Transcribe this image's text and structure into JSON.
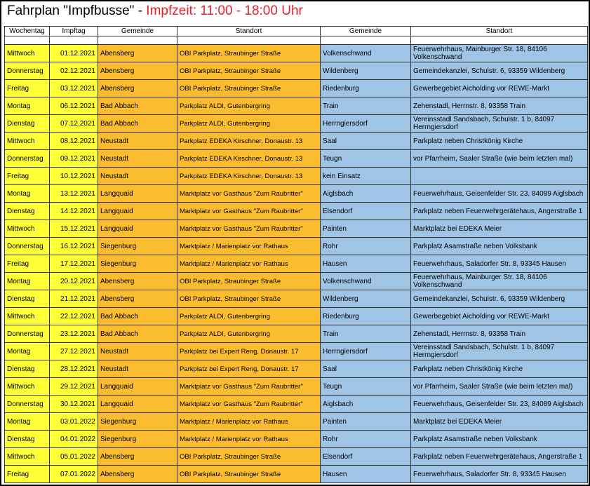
{
  "title": {
    "main": "Fahrplan \"Impfbusse\" - ",
    "highlight": "Impfzeit: 11:00 - 18:00 Uhr"
  },
  "colors": {
    "weekday": "#ffff38",
    "bus1": "#fcbc2f",
    "bus2": "#9fc4e6",
    "highlight": "#e8202a"
  },
  "headers": [
    "Wochentag",
    "Impftag",
    "Gemeinde",
    "Standort",
    "Gemeinde",
    "Standort"
  ],
  "rows": [
    [
      "Mittwoch",
      "01.12.2021",
      "Abensberg",
      "OBI Parkplatz, Straubinger Straße",
      "Volkenschwand",
      "Feuerwehrhaus, Mainburger Str. 18, 84106 Volkenschwand"
    ],
    [
      "Donnerstag",
      "02.12.2021",
      "Abensberg",
      "OBI Parkplatz, Straubinger Straße",
      "Wildenberg",
      "Gemeindekanzlei, Schulstr. 6, 93359 Wildenberg"
    ],
    [
      "Freitag",
      "03.12.2021",
      "Abensberg",
      "OBI Parkplatz, Straubinger Straße",
      "Riedenburg",
      "Gewerbegebiet Aicholding vor REWE-Markt"
    ],
    [
      "Montag",
      "06.12.2021",
      "Bad Abbach",
      "Parkplatz ALDI, Gutenbergring",
      "Train",
      "Zehenstadl, Herrnstr. 8, 93358 Train"
    ],
    [
      "Dienstag",
      "07.12.2021",
      "Bad Abbach",
      "Parkplatz ALDI, Gutenbergring",
      "Herrngiersdorf",
      "Vereinsstadl Sandsbach, Schulstr. 1 b, 84097 Herrngiersdorf"
    ],
    [
      "Mittwoch",
      "08.12.2021",
      "Neustadt",
      "Parkplatz EDEKA Kirschner, Donaustr. 13",
      "Saal",
      "Parkplatz neben Christkönig Kirche"
    ],
    [
      "Donnerstag",
      "09.12.2021",
      "Neustadt",
      "Parkplatz EDEKA Kirschner, Donaustr. 13",
      "Teugn",
      "vor Pfarrheim, Saaler Straße (wie beim letzten mal)"
    ],
    [
      "Freitag",
      "10.12.2021",
      "Neustadt",
      "Parkplatz EDEKA Kirschner, Donaustr. 13",
      "kein Einsatz",
      ""
    ],
    [
      "Montag",
      "13.12.2021",
      "Langquaid",
      "Marktplatz vor Gasthaus \"Zum Raubritter\"",
      "Aiglsbach",
      "Feuerwehrhaus, Geisenfelder Str. 23, 84089 Aiglsbach"
    ],
    [
      "Dienstag",
      "14.12.2021",
      "Langquaid",
      "Marktplatz vor Gasthaus \"Zum Raubritter\"",
      "Elsendorf",
      "Parkplatz neben Feuerwehrgerätehaus, Angerstraße 1"
    ],
    [
      "Mittwoch",
      "15.12.2021",
      "Langquaid",
      "Marktplatz vor Gasthaus \"Zum Raubritter\"",
      "Painten",
      "Marktplatz bei EDEKA Meier"
    ],
    [
      "Donnerstag",
      "16.12.2021",
      "Siegenburg",
      "Marktplatz / Marienplatz vor Rathaus",
      "Rohr",
      "Parkplatz Asamstraße neben Volksbank"
    ],
    [
      "Freitag",
      "17.12.2021",
      "Siegenburg",
      "Marktplatz / Marienplatz vor Rathaus",
      "Hausen",
      "Feuerwehrhaus, Saladorfer Str. 8, 93345 Hausen"
    ],
    [
      "Montag",
      "20.12.2021",
      "Abensberg",
      "OBI Parkplatz, Straubinger Straße",
      "Volkenschwand",
      "Feuerwehrhaus, Mainburger Str. 18, 84106 Volkenschwand"
    ],
    [
      "Dienstag",
      "21.12.2021",
      "Abensberg",
      "OBI Parkplatz, Straubinger Straße",
      "Wildenberg",
      "Gemeindekanzlei, Schulstr. 6, 93359 Wildenberg"
    ],
    [
      "Mittwoch",
      "22.12.2021",
      "Bad Abbach",
      "Parkplatz ALDI, Gutenbergring",
      "Riedenburg",
      "Gewerbegebiet Aicholding vor REWE-Markt"
    ],
    [
      "Donnerstag",
      "23.12.2021",
      "Bad Abbach",
      "Parkplatz ALDI, Gutenbergring",
      "Train",
      "Zehenstadl, Herrnstr. 8, 93358 Train"
    ],
    [
      "Montag",
      "27.12.2021",
      "Neustadt",
      "Parkplatz bei Expert Reng, Donaustr. 17",
      "Herrngiersdorf",
      "Vereinsstadl Sandsbach, Schulstr. 1 b, 84097 Herrngiersdorf"
    ],
    [
      "Dienstag",
      "28.12.2021",
      "Neustadt",
      "Parkplatz bei Expert Reng, Donaustr. 17",
      "Saal",
      "Parkplatz neben Christkönig Kirche"
    ],
    [
      "Mittwoch",
      "29.12.2021",
      "Langquaid",
      "Marktplatz vor Gasthaus \"Zum Raubritter\"",
      "Teugn",
      "vor Pfarrheim, Saaler Straße (wie beim letzten mal)"
    ],
    [
      "Donnerstag",
      "30.12.2021",
      "Langquaid",
      "Marktplatz vor Gasthaus \"Zum Raubritter\"",
      "Aiglsbach",
      "Feuerwehrhaus, Geisenfelder Str. 23, 84089 Aiglsbach"
    ],
    [
      "Montag",
      "03.01.2022",
      "Siegenburg",
      "Marktplatz / Marienplatz vor Rathaus",
      "Painten",
      "Marktplatz bei EDEKA Meier"
    ],
    [
      "Dienstag",
      "04.01.2022",
      "Siegenburg",
      "Marktplatz / Marienplatz vor Rathaus",
      "Rohr",
      "Parkplatz Asamstraße neben Volksbank"
    ],
    [
      "Mittwoch",
      "05.01.2022",
      "Abensberg",
      "OBI Parkplatz, Straubinger Straße",
      "Elsendorf",
      "Parkplatz neben Feuerwehrgerätehaus, Angerstraße 1"
    ],
    [
      "Freitag",
      "07.01.2022",
      "Abensberg",
      "OBI Parkplatz, Straubinger Straße",
      "Hausen",
      "Feuerwehrhaus, Saladorfer Str. 8, 93345 Hausen"
    ]
  ]
}
